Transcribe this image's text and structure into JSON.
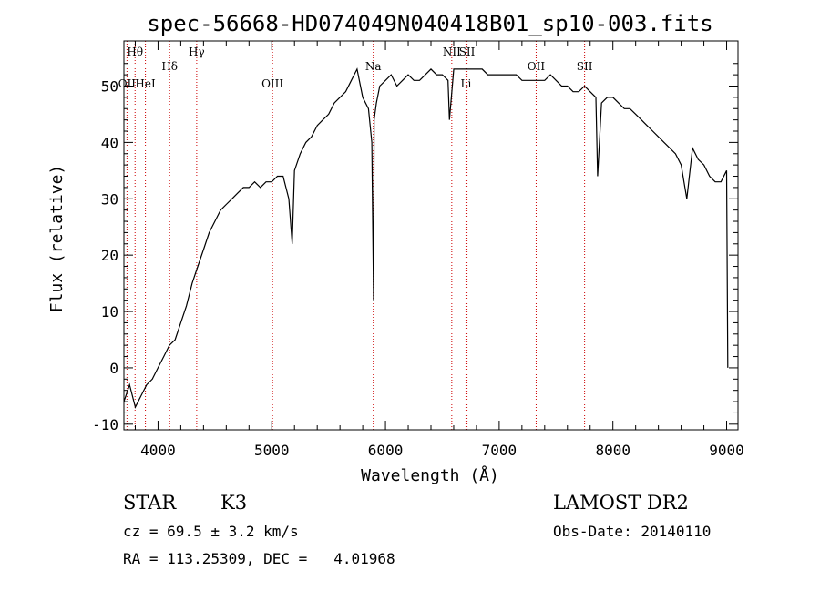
{
  "chart_data": {
    "type": "line",
    "title": "spec-56668-HD074049N040418B01_sp10-003.fits",
    "xlabel": "Wavelength (Å)",
    "ylabel": "Flux (relative)",
    "xlim": [
      3700,
      9100
    ],
    "ylim": [
      -11,
      58
    ],
    "x_ticks": [
      4000,
      5000,
      6000,
      7000,
      8000,
      9000
    ],
    "y_ticks": [
      -10,
      0,
      10,
      20,
      30,
      40,
      50
    ],
    "grid": false,
    "series": [
      {
        "x": [
          3700,
          3750,
          3800,
          3850,
          3900,
          3950,
          4000,
          4050,
          4100,
          4150,
          4200,
          4250,
          4300,
          4350,
          4400,
          4450,
          4500,
          4550,
          4600,
          4650,
          4700,
          4750,
          4800,
          4850,
          4900,
          4950,
          5000,
          5050,
          5100,
          5150,
          5180,
          5200,
          5250,
          5300,
          5350,
          5400,
          5450,
          5500,
          5550,
          5600,
          5650,
          5700,
          5750,
          5800,
          5850,
          5880,
          5895,
          5900,
          5920,
          5950,
          6000,
          6050,
          6100,
          6150,
          6200,
          6250,
          6300,
          6350,
          6400,
          6450,
          6500,
          6550,
          6563,
          6600,
          6650,
          6700,
          6750,
          6800,
          6850,
          6900,
          6950,
          7000,
          7050,
          7100,
          7150,
          7200,
          7250,
          7300,
          7350,
          7400,
          7450,
          7500,
          7550,
          7600,
          7650,
          7700,
          7750,
          7800,
          7850,
          7865,
          7900,
          7950,
          8000,
          8050,
          8100,
          8150,
          8200,
          8250,
          8300,
          8350,
          8400,
          8450,
          8500,
          8550,
          8600,
          8650,
          8700,
          8750,
          8800,
          8850,
          8900,
          8950,
          9000,
          9010
        ],
        "y": [
          -6,
          -3,
          -7,
          -5,
          -3,
          -2,
          0,
          2,
          4,
          5,
          8,
          11,
          15,
          18,
          21,
          24,
          26,
          28,
          29,
          30,
          31,
          32,
          32,
          33,
          32,
          33,
          33,
          34,
          34,
          30,
          22,
          35,
          38,
          40,
          41,
          43,
          44,
          45,
          47,
          48,
          49,
          51,
          53,
          48,
          46,
          40,
          12,
          44,
          47,
          50,
          51,
          52,
          50,
          51,
          52,
          51,
          51,
          52,
          53,
          52,
          52,
          51,
          44,
          53,
          53,
          53,
          53,
          53,
          53,
          52,
          52,
          52,
          52,
          52,
          52,
          51,
          51,
          51,
          51,
          51,
          52,
          51,
          50,
          50,
          49,
          49,
          50,
          49,
          48,
          34,
          47,
          48,
          48,
          47,
          46,
          46,
          45,
          44,
          43,
          42,
          41,
          40,
          39,
          38,
          36,
          30,
          39,
          37,
          36,
          34,
          33,
          33,
          35,
          0
        ],
        "color": "#000000"
      }
    ],
    "line_markers": [
      {
        "label": "Hθ",
        "wavelength": 3798,
        "row": "top"
      },
      {
        "label": "OII",
        "wavelength": 3727,
        "row": "mid"
      },
      {
        "label": "HeI",
        "wavelength": 3889,
        "row": "mid"
      },
      {
        "label": "Hδ",
        "wavelength": 4102,
        "row": "upper"
      },
      {
        "label": "Hγ",
        "wavelength": 4340,
        "row": "top"
      },
      {
        "label": "OIII",
        "wavelength": 5007,
        "row": "mid"
      },
      {
        "label": "Na",
        "wavelength": 5893,
        "row": "upper"
      },
      {
        "label": "NII",
        "wavelength": 6583,
        "row": "top"
      },
      {
        "label": "SII",
        "wavelength": 6717,
        "row": "top"
      },
      {
        "label": "Li",
        "wavelength": 6708,
        "row": "mid"
      },
      {
        "label": "OII",
        "wavelength": 7325,
        "row": "upper"
      },
      {
        "label": "SII",
        "wavelength": 7751,
        "row": "upper"
      }
    ],
    "marker_color": "#cc0000"
  },
  "info": {
    "object_class": "STAR",
    "subclass": "K3",
    "survey": "LAMOST DR2",
    "cz_line": "cz = 69.5 ± 3.2 km/s",
    "obs_date": "Obs-Date: 20140110",
    "radec": "RA = 113.25309, DEC =   4.01968"
  }
}
